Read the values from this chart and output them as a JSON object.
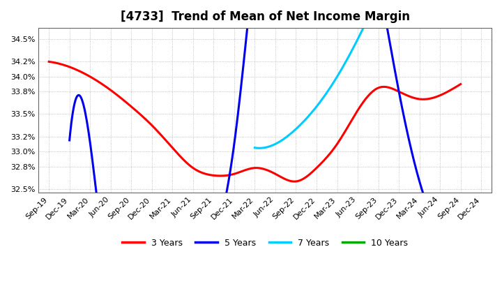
{
  "title": "[4733]  Trend of Mean of Net Income Margin",
  "background_color": "#ffffff",
  "plot_background_color": "#ffffff",
  "grid_color": "#aaaaaa",
  "x_labels": [
    "Sep-19",
    "Dec-19",
    "Mar-20",
    "Jun-20",
    "Sep-20",
    "Dec-20",
    "Mar-21",
    "Jun-21",
    "Sep-21",
    "Dec-21",
    "Mar-22",
    "Jun-22",
    "Sep-22",
    "Dec-22",
    "Mar-23",
    "Jun-23",
    "Sep-23",
    "Dec-23",
    "Mar-24",
    "Jun-24",
    "Sep-24",
    "Dec-24"
  ],
  "y3_x": [
    0,
    1,
    2,
    3,
    4,
    5,
    6,
    7,
    8,
    9,
    10,
    11,
    12,
    13,
    14,
    15,
    16,
    17,
    18,
    19,
    20
  ],
  "y3_y": [
    0.342,
    0.3413,
    0.34,
    0.3382,
    0.336,
    0.3335,
    0.3305,
    0.3278,
    0.3268,
    0.327,
    0.3278,
    0.327,
    0.326,
    0.3278,
    0.331,
    0.3355,
    0.3385,
    0.338,
    0.337,
    0.3375,
    0.339
  ],
  "y5_x": [
    1,
    2,
    3,
    4,
    5,
    6,
    7,
    8,
    9,
    10,
    11,
    12,
    13,
    14,
    15,
    16,
    17,
    18,
    19,
    20,
    21
  ],
  "y5_y": [
    0.3315,
    0.3312,
    0.3108,
    0.3105,
    0.3108,
    0.311,
    0.312,
    0.3175,
    0.331,
    0.356,
    0.374,
    0.374,
    0.373,
    0.37,
    0.365,
    0.353,
    0.338,
    0.326,
    0.3185,
    0.312,
    0.3
  ],
  "y7_x": [
    10,
    11,
    12,
    13,
    14,
    15,
    16,
    17,
    18,
    19,
    20,
    21
  ],
  "y7_y": [
    0.3305,
    0.331,
    0.333,
    0.336,
    0.34,
    0.345,
    0.3505,
    0.3545,
    0.355,
    0.355,
    0.3545,
    0.35
  ],
  "color_3y": "#ff0000",
  "color_5y": "#0000ee",
  "color_7y": "#00ccff",
  "color_10y": "#00aa00",
  "legend_entries": [
    "3 Years",
    "5 Years",
    "7 Years",
    "10 Years"
  ],
  "legend_colors": [
    "#ff0000",
    "#0000ee",
    "#00ccff",
    "#00aa00"
  ],
  "ylim_low": 0.3245,
  "ylim_high": 0.3465,
  "yticks": [
    0.325,
    0.328,
    0.33,
    0.332,
    0.335,
    0.338,
    0.34,
    0.342,
    0.345
  ]
}
